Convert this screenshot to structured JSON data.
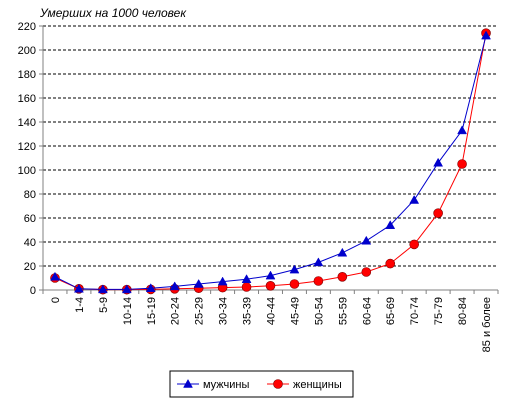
{
  "chart_data": {
    "type": "line",
    "ylabel": "Умерших на 1000 человек",
    "categories": [
      "0",
      "1-4",
      "5-9",
      "10-14",
      "15-19",
      "20-24",
      "25-29",
      "30-34",
      "35-39",
      "40-44",
      "45-49",
      "50-54",
      "55-59",
      "60-64",
      "65-69",
      "70-74",
      "75-79",
      "80-84",
      "85 и более"
    ],
    "ylim": [
      0,
      220
    ],
    "yticks": [
      0,
      20,
      40,
      60,
      80,
      100,
      120,
      140,
      160,
      180,
      200,
      220
    ],
    "grid": true,
    "legend_position": "bottom",
    "series": [
      {
        "name": "мужчины",
        "color": "#0000cc",
        "marker": "triangle",
        "values": [
          11,
          1,
          0.5,
          0.5,
          1.5,
          3,
          5,
          7,
          9,
          12,
          17,
          23,
          31,
          41,
          54,
          75,
          106,
          133,
          212
        ]
      },
      {
        "name": "женщины",
        "color": "#ff0000",
        "marker": "circle",
        "values": [
          10,
          1,
          0.3,
          0.3,
          0.5,
          1,
          1.5,
          2,
          2.5,
          3.5,
          5,
          7.5,
          11,
          15,
          22,
          38,
          64,
          105,
          214
        ]
      }
    ]
  }
}
